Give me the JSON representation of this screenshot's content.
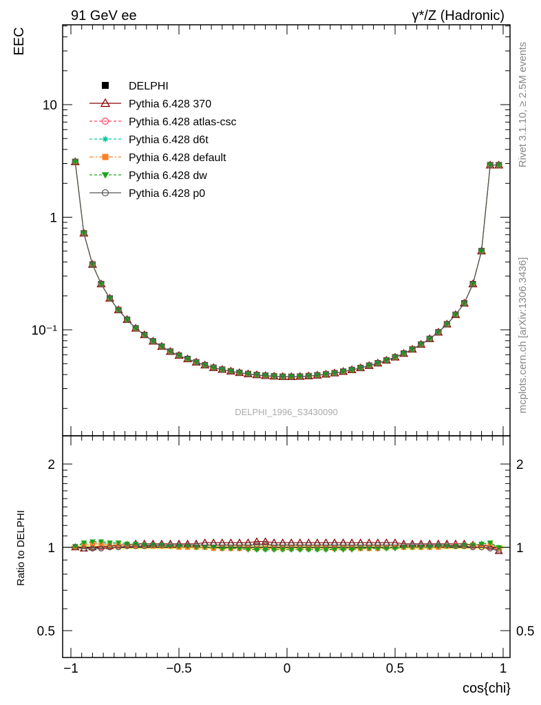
{
  "header": {
    "left_label": "91 GeV ee",
    "right_label": "γ*/Z (Hadronic)"
  },
  "side_labels": {
    "rivet": "Rivet 3.1.10, ≥ 2.5M events",
    "mcplots": "mcplots.cern.ch [arXiv:1306.3436]"
  },
  "watermark": "DELPHI_1996_S3430090",
  "chart_data": [
    {
      "type": "line",
      "panel": "main",
      "ylabel": "EEC",
      "xlabel": "",
      "yscale": "log",
      "xlim": [
        -1.05,
        1.05
      ],
      "ylim": [
        0.015,
        50
      ],
      "x_ticks": [
        "−1",
        "−0.5",
        "0",
        "0.5",
        "1"
      ],
      "y_ticks": [
        "10⁻¹",
        "1",
        "10"
      ],
      "legend_position": "top-left",
      "x": [
        -0.98,
        -0.94,
        -0.9,
        -0.86,
        -0.82,
        -0.78,
        -0.74,
        -0.7,
        -0.66,
        -0.62,
        -0.58,
        -0.54,
        -0.5,
        -0.46,
        -0.42,
        -0.38,
        -0.34,
        -0.3,
        -0.26,
        -0.22,
        -0.18,
        -0.14,
        -0.1,
        -0.06,
        -0.02,
        0.02,
        0.06,
        0.1,
        0.14,
        0.18,
        0.22,
        0.26,
        0.3,
        0.34,
        0.38,
        0.42,
        0.46,
        0.5,
        0.54,
        0.58,
        0.62,
        0.66,
        0.7,
        0.74,
        0.78,
        0.82,
        0.86,
        0.9,
        0.94,
        0.98
      ],
      "series": [
        {
          "name": "DELPHI",
          "marker": "square-filled",
          "color": "#000000",
          "dash": "",
          "values": [
            3.1,
            0.72,
            0.38,
            0.255,
            0.19,
            0.15,
            0.123,
            0.103,
            0.09,
            0.079,
            0.071,
            0.064,
            0.059,
            0.055,
            0.0515,
            0.0485,
            0.046,
            0.0443,
            0.0428,
            0.0415,
            0.0405,
            0.0397,
            0.0391,
            0.0386,
            0.0383,
            0.0382,
            0.0384,
            0.0388,
            0.0394,
            0.0402,
            0.0412,
            0.0425,
            0.044,
            0.0458,
            0.048,
            0.0505,
            0.0535,
            0.057,
            0.0615,
            0.067,
            0.074,
            0.083,
            0.095,
            0.112,
            0.136,
            0.172,
            0.255,
            0.5,
            2.9,
            2.9
          ]
        },
        {
          "name": "Pythia 6.428 370",
          "marker": "triangle-open",
          "color": "#8b0000",
          "dash": "",
          "values": [
            3.1,
            0.72,
            0.38,
            0.255,
            0.19,
            0.15,
            0.123,
            0.103,
            0.09,
            0.079,
            0.071,
            0.064,
            0.059,
            0.055,
            0.0515,
            0.0485,
            0.046,
            0.0443,
            0.0428,
            0.0415,
            0.0405,
            0.0397,
            0.0391,
            0.0386,
            0.0383,
            0.0382,
            0.0384,
            0.0388,
            0.0394,
            0.0402,
            0.0412,
            0.0425,
            0.044,
            0.0458,
            0.048,
            0.0505,
            0.0535,
            0.057,
            0.0615,
            0.067,
            0.074,
            0.083,
            0.095,
            0.112,
            0.136,
            0.172,
            0.255,
            0.5,
            2.9,
            2.9
          ]
        },
        {
          "name": "Pythia 6.428 atlas-csc",
          "marker": "circle-open",
          "color": "#ff3b5c",
          "dash": "4,3",
          "values": [
            3.1,
            0.72,
            0.38,
            0.255,
            0.19,
            0.15,
            0.123,
            0.103,
            0.09,
            0.079,
            0.071,
            0.064,
            0.059,
            0.055,
            0.0515,
            0.0485,
            0.046,
            0.0443,
            0.0428,
            0.0415,
            0.0405,
            0.0397,
            0.0391,
            0.0386,
            0.0383,
            0.0382,
            0.0384,
            0.0388,
            0.0394,
            0.0402,
            0.0412,
            0.0425,
            0.044,
            0.0458,
            0.048,
            0.0505,
            0.0535,
            0.057,
            0.0615,
            0.067,
            0.074,
            0.083,
            0.095,
            0.112,
            0.136,
            0.172,
            0.255,
            0.5,
            2.9,
            2.9
          ]
        },
        {
          "name": "Pythia 6.428 d6t",
          "marker": "star",
          "color": "#00c49a",
          "dash": "4,3",
          "values": [
            3.1,
            0.72,
            0.38,
            0.255,
            0.19,
            0.15,
            0.123,
            0.103,
            0.09,
            0.079,
            0.071,
            0.064,
            0.059,
            0.055,
            0.0515,
            0.0485,
            0.046,
            0.0443,
            0.0428,
            0.0415,
            0.0405,
            0.0397,
            0.0391,
            0.0386,
            0.0383,
            0.0382,
            0.0384,
            0.0388,
            0.0394,
            0.0402,
            0.0412,
            0.0425,
            0.044,
            0.0458,
            0.048,
            0.0505,
            0.0535,
            0.057,
            0.0615,
            0.067,
            0.074,
            0.083,
            0.095,
            0.112,
            0.136,
            0.172,
            0.255,
            0.5,
            2.9,
            2.9
          ]
        },
        {
          "name": "Pythia 6.428 default",
          "marker": "square-filled",
          "color": "#ff7f27",
          "dash": "6,3,2,3",
          "values": [
            3.1,
            0.72,
            0.38,
            0.255,
            0.19,
            0.15,
            0.123,
            0.103,
            0.09,
            0.079,
            0.071,
            0.064,
            0.059,
            0.055,
            0.0515,
            0.0485,
            0.046,
            0.0443,
            0.0428,
            0.0415,
            0.0405,
            0.0397,
            0.0391,
            0.0386,
            0.0383,
            0.0382,
            0.0384,
            0.0388,
            0.0394,
            0.0402,
            0.0412,
            0.0425,
            0.044,
            0.0458,
            0.048,
            0.0505,
            0.0535,
            0.057,
            0.0615,
            0.067,
            0.074,
            0.083,
            0.095,
            0.112,
            0.136,
            0.172,
            0.255,
            0.5,
            2.9,
            2.9
          ]
        },
        {
          "name": "Pythia 6.428 dw",
          "marker": "triangle-down-filled",
          "color": "#1aa51a",
          "dash": "4,3",
          "values": [
            3.1,
            0.72,
            0.38,
            0.255,
            0.19,
            0.15,
            0.123,
            0.103,
            0.09,
            0.079,
            0.071,
            0.064,
            0.059,
            0.055,
            0.0515,
            0.0485,
            0.046,
            0.0443,
            0.0428,
            0.0415,
            0.0405,
            0.0397,
            0.0391,
            0.0386,
            0.0383,
            0.0382,
            0.0384,
            0.0388,
            0.0394,
            0.0402,
            0.0412,
            0.0425,
            0.044,
            0.0458,
            0.048,
            0.0505,
            0.0535,
            0.057,
            0.0615,
            0.067,
            0.074,
            0.083,
            0.095,
            0.112,
            0.136,
            0.172,
            0.255,
            0.5,
            2.9,
            2.9
          ]
        },
        {
          "name": "Pythia 6.428 p0",
          "marker": "circle-open",
          "color": "#555555",
          "dash": "",
          "values": [
            3.1,
            0.72,
            0.38,
            0.255,
            0.19,
            0.15,
            0.123,
            0.103,
            0.09,
            0.079,
            0.071,
            0.064,
            0.059,
            0.055,
            0.0515,
            0.0485,
            0.046,
            0.0443,
            0.0428,
            0.0415,
            0.0405,
            0.0397,
            0.0391,
            0.0386,
            0.0383,
            0.0382,
            0.0384,
            0.0388,
            0.0394,
            0.0402,
            0.0412,
            0.0425,
            0.044,
            0.0458,
            0.048,
            0.0505,
            0.0535,
            0.057,
            0.0615,
            0.067,
            0.074,
            0.083,
            0.095,
            0.112,
            0.136,
            0.172,
            0.255,
            0.5,
            2.9,
            2.9
          ]
        }
      ]
    },
    {
      "type": "line",
      "panel": "ratio",
      "ylabel": "Ratio to DELPHI",
      "xlabel": "cos{chi}",
      "yscale": "log",
      "xlim": [
        -1.05,
        1.05
      ],
      "ylim": [
        0.42,
        2.4
      ],
      "x_ticks": [
        "−1",
        "−0.5",
        "0",
        "0.5",
        "1"
      ],
      "y_ticks": [
        "0.5",
        "1",
        "2"
      ],
      "band": {
        "color": "#eef27a",
        "lower": 0.985,
        "upper": 1.02
      },
      "x": [
        -0.98,
        -0.94,
        -0.9,
        -0.86,
        -0.82,
        -0.78,
        -0.74,
        -0.7,
        -0.66,
        -0.62,
        -0.58,
        -0.54,
        -0.5,
        -0.46,
        -0.42,
        -0.38,
        -0.34,
        -0.3,
        -0.26,
        -0.22,
        -0.18,
        -0.14,
        -0.1,
        -0.06,
        -0.02,
        0.02,
        0.06,
        0.1,
        0.14,
        0.18,
        0.22,
        0.26,
        0.3,
        0.34,
        0.38,
        0.42,
        0.46,
        0.5,
        0.54,
        0.58,
        0.62,
        0.66,
        0.7,
        0.74,
        0.78,
        0.82,
        0.86,
        0.9,
        0.94,
        0.98
      ],
      "series": [
        {
          "name": "Pythia 6.428 370",
          "marker": "triangle-open",
          "color": "#8b0000",
          "dash": "",
          "values": [
            1.0,
            0.99,
            1.0,
            1.01,
            1.01,
            1.02,
            1.02,
            1.03,
            1.03,
            1.03,
            1.03,
            1.03,
            1.03,
            1.03,
            1.03,
            1.04,
            1.04,
            1.04,
            1.04,
            1.04,
            1.04,
            1.05,
            1.05,
            1.04,
            1.04,
            1.04,
            1.04,
            1.04,
            1.04,
            1.04,
            1.04,
            1.04,
            1.04,
            1.04,
            1.04,
            1.04,
            1.04,
            1.04,
            1.03,
            1.03,
            1.03,
            1.03,
            1.03,
            1.03,
            1.03,
            1.03,
            1.02,
            1.02,
            1.01,
            0.97
          ]
        },
        {
          "name": "Pythia 6.428 atlas-csc",
          "marker": "circle-open",
          "color": "#ff3b5c",
          "dash": "4,3",
          "values": [
            1.0,
            0.99,
            0.99,
            1.0,
            1.0,
            1.01,
            1.01,
            1.02,
            1.02,
            1.02,
            1.02,
            1.02,
            1.02,
            1.02,
            1.02,
            1.02,
            1.02,
            1.02,
            1.02,
            1.02,
            1.02,
            1.02,
            1.02,
            1.02,
            1.02,
            1.02,
            1.02,
            1.02,
            1.02,
            1.02,
            1.02,
            1.02,
            1.02,
            1.02,
            1.02,
            1.02,
            1.02,
            1.02,
            1.02,
            1.02,
            1.02,
            1.02,
            1.02,
            1.02,
            1.02,
            1.02,
            1.01,
            1.0,
            1.0,
            0.98
          ]
        },
        {
          "name": "Pythia 6.428 d6t",
          "marker": "star",
          "color": "#00c49a",
          "dash": "4,3",
          "values": [
            1.01,
            1.03,
            1.04,
            1.04,
            1.03,
            1.03,
            1.02,
            1.02,
            1.02,
            1.02,
            1.01,
            1.01,
            1.01,
            1.0,
            1.0,
            1.0,
            0.99,
            0.99,
            0.99,
            0.99,
            0.99,
            0.98,
            0.98,
            0.98,
            0.98,
            0.98,
            0.98,
            0.98,
            0.98,
            0.98,
            0.99,
            0.99,
            0.99,
            0.99,
            0.99,
            0.99,
            0.99,
            1.0,
            1.0,
            1.0,
            1.0,
            1.01,
            1.01,
            1.01,
            1.01,
            1.02,
            1.02,
            1.03,
            1.03,
            1.0
          ]
        },
        {
          "name": "Pythia 6.428 default",
          "marker": "square-filled",
          "color": "#ff7f27",
          "dash": "6,3,2,3",
          "values": [
            1.0,
            1.02,
            1.03,
            1.03,
            1.02,
            1.02,
            1.02,
            1.01,
            1.01,
            1.01,
            1.01,
            1.01,
            1.0,
            1.0,
            1.0,
            1.0,
            0.99,
            0.99,
            0.99,
            0.99,
            0.99,
            0.99,
            0.99,
            0.99,
            0.99,
            0.99,
            0.99,
            0.99,
            0.99,
            0.99,
            0.99,
            0.99,
            0.99,
            0.99,
            0.99,
            0.99,
            1.0,
            1.0,
            1.0,
            1.0,
            1.0,
            1.0,
            1.0,
            1.01,
            1.01,
            1.01,
            1.02,
            1.02,
            1.03,
            0.99
          ]
        },
        {
          "name": "Pythia 6.428 dw",
          "marker": "triangle-down-filled",
          "color": "#1aa51a",
          "dash": "4,3",
          "values": [
            1.01,
            1.04,
            1.05,
            1.05,
            1.04,
            1.04,
            1.03,
            1.03,
            1.02,
            1.02,
            1.02,
            1.01,
            1.01,
            1.01,
            1.0,
            1.0,
            1.0,
            0.99,
            0.99,
            0.99,
            0.98,
            0.98,
            0.98,
            0.98,
            0.98,
            0.98,
            0.98,
            0.98,
            0.98,
            0.98,
            0.98,
            0.98,
            0.98,
            0.99,
            0.99,
            0.99,
            0.99,
            0.99,
            1.0,
            1.0,
            1.0,
            1.0,
            1.01,
            1.01,
            1.01,
            1.02,
            1.02,
            1.03,
            1.04,
            1.0
          ]
        },
        {
          "name": "Pythia 6.428 p0",
          "marker": "circle-open",
          "color": "#555555",
          "dash": "",
          "values": [
            1.0,
            0.99,
            0.99,
            0.99,
            1.0,
            1.0,
            1.01,
            1.01,
            1.01,
            1.02,
            1.02,
            1.02,
            1.02,
            1.02,
            1.02,
            1.02,
            1.02,
            1.02,
            1.02,
            1.02,
            1.02,
            1.02,
            1.02,
            1.02,
            1.02,
            1.02,
            1.02,
            1.02,
            1.02,
            1.02,
            1.02,
            1.02,
            1.02,
            1.02,
            1.02,
            1.02,
            1.02,
            1.02,
            1.02,
            1.02,
            1.02,
            1.02,
            1.02,
            1.02,
            1.01,
            1.01,
            1.0,
            1.0,
            0.99,
            0.97
          ]
        }
      ]
    }
  ]
}
